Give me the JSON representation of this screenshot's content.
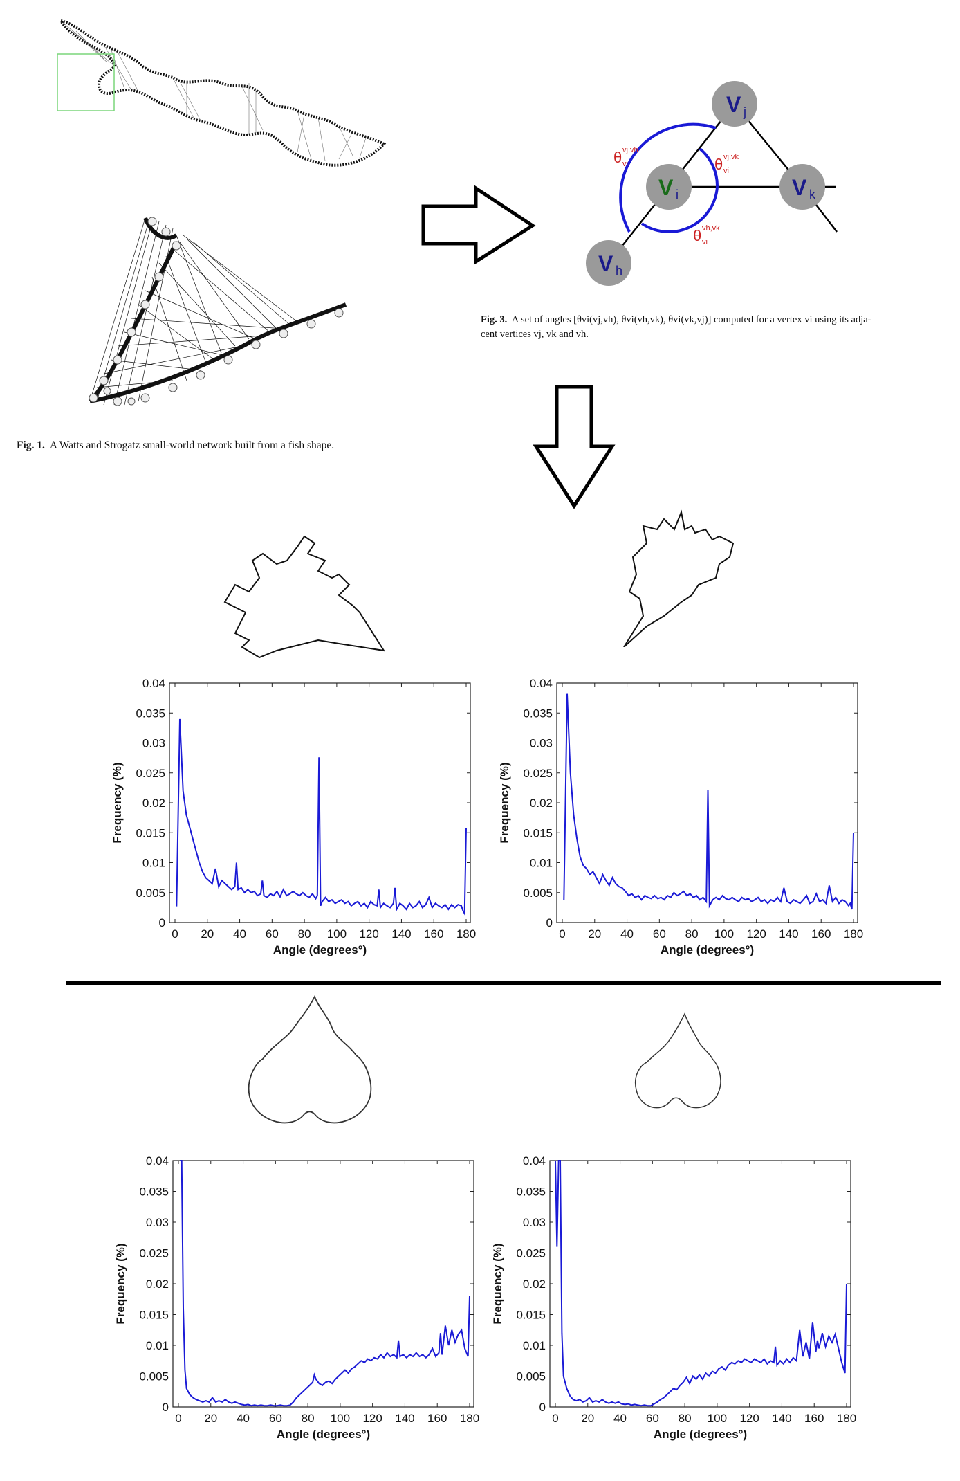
{
  "fig1": {
    "label": "Fig. 1.",
    "caption": "A Watts and Strogatz small-world network built from a fish shape."
  },
  "fig3": {
    "label": "Fig. 3.",
    "caption_a": "A set of angles [θ",
    "caption_line1": "A set of angles [θvi(vj,vh), θvi(vh,vk), θvi(vk,vj)] computed for a vertex vi using its adja-",
    "caption_line2": "cent vertices vj, vk and vh.",
    "nodes": {
      "vj": "V",
      "vj_sub": "j",
      "vi": "V",
      "vi_sub": "i",
      "vk": "V",
      "vk_sub": "k",
      "vh": "V",
      "vh_sub": "h"
    },
    "angle_labels": {
      "a1": "θ",
      "a1_sub": "vi",
      "a1_sup": "vj,vh",
      "a2": "θ",
      "a2_sub": "vi",
      "a2_sup": "vj,vk",
      "a3": "θ",
      "a3_sub": "vi",
      "a3_sup": "vh,vk"
    }
  },
  "colors": {
    "series": "#1a1ad6",
    "axis": "#222222",
    "angle_label": "#cc2222",
    "node_fill": "#9a9a9a",
    "vi_text": "#1a6b1a",
    "node_text": "#1a1a8a",
    "arc": "#1a1ad6",
    "highlight_box": "#7ad67a"
  },
  "chart_data": [
    {
      "type": "line",
      "xlabel": "Angle (degrees°)",
      "ylabel": "Frequency (%)",
      "xlim": [
        0,
        180
      ],
      "ylim": [
        0,
        0.04
      ],
      "xticks": [
        "0",
        "20",
        "40",
        "60",
        "80",
        "100",
        "120",
        "140",
        "160",
        "180"
      ],
      "yticks": [
        "0",
        "0.005",
        "0.01",
        "0.015",
        "0.02",
        "0.025",
        "0.03",
        "0.035",
        "0.04"
      ],
      "x": [
        1,
        3,
        5,
        7,
        9,
        11,
        13,
        15,
        17,
        19,
        21,
        23,
        25,
        27,
        29,
        31,
        33,
        35,
        37,
        38,
        39,
        41,
        43,
        45,
        47,
        49,
        51,
        53,
        54,
        55,
        57,
        59,
        61,
        63,
        65,
        67,
        69,
        71,
        73,
        75,
        77,
        79,
        81,
        83,
        85,
        87,
        88,
        89,
        90,
        91,
        93,
        95,
        97,
        99,
        101,
        103,
        105,
        107,
        109,
        111,
        113,
        115,
        117,
        119,
        121,
        123,
        125,
        126,
        127,
        129,
        131,
        133,
        135,
        136,
        137,
        139,
        141,
        143,
        145,
        147,
        149,
        151,
        153,
        155,
        157,
        159,
        161,
        163,
        165,
        167,
        169,
        171,
        173,
        175,
        177,
        178,
        179,
        180
      ],
      "y": [
        0.0027,
        0.034,
        0.022,
        0.018,
        0.016,
        0.014,
        0.012,
        0.01,
        0.0085,
        0.0075,
        0.007,
        0.0065,
        0.009,
        0.006,
        0.007,
        0.0065,
        0.006,
        0.0055,
        0.006,
        0.01,
        0.0055,
        0.0058,
        0.005,
        0.0055,
        0.005,
        0.0052,
        0.0045,
        0.0048,
        0.007,
        0.0045,
        0.0042,
        0.0048,
        0.0045,
        0.0052,
        0.0043,
        0.0055,
        0.0045,
        0.0048,
        0.0052,
        0.0048,
        0.0045,
        0.005,
        0.0045,
        0.0042,
        0.0048,
        0.004,
        0.0045,
        0.0276,
        0.0028,
        0.0035,
        0.0042,
        0.0035,
        0.0038,
        0.0032,
        0.0035,
        0.0038,
        0.0032,
        0.0035,
        0.0028,
        0.0032,
        0.0035,
        0.0028,
        0.0032,
        0.0025,
        0.0035,
        0.003,
        0.0028,
        0.0055,
        0.0025,
        0.0032,
        0.0028,
        0.0025,
        0.0032,
        0.0058,
        0.0022,
        0.0032,
        0.0028,
        0.0022,
        0.0032,
        0.0025,
        0.0028,
        0.0035,
        0.0025,
        0.003,
        0.0042,
        0.0025,
        0.0032,
        0.0028,
        0.0025,
        0.003,
        0.0022,
        0.003,
        0.0025,
        0.003,
        0.0028,
        0.002,
        0.0015,
        0.0158
      ]
    },
    {
      "type": "line",
      "xlabel": "Angle (degrees°)",
      "ylabel": "Frequency (%)",
      "xlim": [
        0,
        180
      ],
      "ylim": [
        0,
        0.04
      ],
      "xticks": [
        "0",
        "20",
        "40",
        "60",
        "80",
        "100",
        "120",
        "140",
        "160",
        "180"
      ],
      "yticks": [
        "0",
        "0.005",
        "0.01",
        "0.015",
        "0.02",
        "0.025",
        "0.03",
        "0.035",
        "0.04"
      ],
      "x": [
        1,
        3,
        5,
        7,
        9,
        11,
        13,
        15,
        17,
        19,
        21,
        23,
        25,
        27,
        29,
        31,
        33,
        35,
        37,
        39,
        41,
        43,
        45,
        47,
        49,
        51,
        53,
        55,
        57,
        59,
        61,
        63,
        65,
        67,
        69,
        71,
        73,
        75,
        77,
        79,
        81,
        83,
        85,
        87,
        89,
        90,
        91,
        93,
        95,
        97,
        99,
        101,
        103,
        105,
        107,
        109,
        111,
        113,
        115,
        117,
        119,
        121,
        123,
        125,
        127,
        129,
        131,
        133,
        135,
        137,
        139,
        141,
        143,
        145,
        147,
        149,
        151,
        153,
        155,
        157,
        159,
        161,
        163,
        165,
        167,
        169,
        171,
        173,
        175,
        177,
        178,
        179,
        180
      ],
      "y": [
        0.0038,
        0.0382,
        0.025,
        0.018,
        0.014,
        0.011,
        0.0095,
        0.009,
        0.008,
        0.0085,
        0.0075,
        0.0065,
        0.008,
        0.007,
        0.0062,
        0.0075,
        0.0065,
        0.006,
        0.0058,
        0.0052,
        0.0045,
        0.0048,
        0.0042,
        0.0045,
        0.0038,
        0.0045,
        0.0042,
        0.004,
        0.0045,
        0.004,
        0.0042,
        0.0038,
        0.0045,
        0.0042,
        0.005,
        0.0045,
        0.0048,
        0.0052,
        0.0045,
        0.0048,
        0.0042,
        0.0045,
        0.0038,
        0.0042,
        0.0035,
        0.0222,
        0.0028,
        0.0038,
        0.0042,
        0.0038,
        0.0045,
        0.004,
        0.0038,
        0.0042,
        0.0038,
        0.0035,
        0.0042,
        0.0038,
        0.004,
        0.0035,
        0.0038,
        0.0042,
        0.0035,
        0.0038,
        0.0032,
        0.0038,
        0.0035,
        0.0042,
        0.0035,
        0.0058,
        0.0035,
        0.0032,
        0.0038,
        0.0035,
        0.0032,
        0.0038,
        0.0045,
        0.0032,
        0.0035,
        0.0048,
        0.0035,
        0.0038,
        0.0032,
        0.0062,
        0.0035,
        0.0042,
        0.0032,
        0.0038,
        0.0035,
        0.0028,
        0.0032,
        0.0022,
        0.015
      ]
    },
    {
      "type": "line",
      "xlabel": "Angle (degrees°)",
      "ylabel": "Frequency (%)",
      "xlim": [
        0,
        180
      ],
      "ylim": [
        0,
        0.04
      ],
      "xticks": [
        "0",
        "20",
        "40",
        "60",
        "80",
        "100",
        "120",
        "140",
        "160",
        "180"
      ],
      "yticks": [
        "0",
        "0.005",
        "0.01",
        "0.015",
        "0.02",
        "0.025",
        "0.03",
        "0.035",
        "0.04"
      ],
      "x": [
        1,
        2,
        3,
        4,
        5,
        7,
        9,
        11,
        13,
        15,
        17,
        19,
        21,
        23,
        25,
        27,
        29,
        31,
        33,
        35,
        37,
        39,
        41,
        43,
        45,
        47,
        49,
        51,
        53,
        55,
        57,
        59,
        61,
        63,
        65,
        67,
        69,
        71,
        73,
        75,
        77,
        79,
        81,
        83,
        84,
        85,
        87,
        89,
        91,
        93,
        95,
        97,
        99,
        101,
        103,
        105,
        107,
        109,
        111,
        113,
        115,
        117,
        119,
        121,
        123,
        125,
        127,
        129,
        131,
        133,
        135,
        136,
        137,
        139,
        141,
        143,
        145,
        147,
        149,
        151,
        153,
        155,
        157,
        159,
        161,
        162,
        163,
        165,
        167,
        169,
        171,
        173,
        175,
        177,
        179,
        180
      ],
      "y": [
        0.04,
        0.04,
        0.016,
        0.006,
        0.003,
        0.002,
        0.0015,
        0.0012,
        0.001,
        0.0008,
        0.001,
        0.0008,
        0.0015,
        0.0008,
        0.001,
        0.0008,
        0.0012,
        0.0008,
        0.0006,
        0.0008,
        0.0006,
        0.0004,
        0.0003,
        0.0004,
        0.0002,
        0.0003,
        0.0002,
        0.0003,
        0.0002,
        0.0002,
        0.0003,
        0.0002,
        0.0002,
        0.0003,
        0.0002,
        0.0002,
        0.0003,
        0.0008,
        0.0015,
        0.002,
        0.0025,
        0.003,
        0.0035,
        0.004,
        0.0052,
        0.0045,
        0.0038,
        0.0035,
        0.004,
        0.0042,
        0.0038,
        0.0045,
        0.005,
        0.0055,
        0.006,
        0.0055,
        0.0062,
        0.0065,
        0.007,
        0.0075,
        0.0072,
        0.0078,
        0.0075,
        0.008,
        0.0078,
        0.0085,
        0.008,
        0.0088,
        0.0082,
        0.0085,
        0.008,
        0.0108,
        0.0082,
        0.0085,
        0.008,
        0.0085,
        0.0082,
        0.0088,
        0.0082,
        0.0085,
        0.008,
        0.0085,
        0.0095,
        0.0082,
        0.0088,
        0.012,
        0.0085,
        0.0132,
        0.01,
        0.0125,
        0.0105,
        0.0118,
        0.0125,
        0.0095,
        0.0082,
        0.018
      ]
    },
    {
      "type": "line",
      "xlabel": "Angle (degrees°)",
      "ylabel": "Frequency (%)",
      "xlim": [
        0,
        180
      ],
      "ylim": [
        0,
        0.04
      ],
      "xticks": [
        "0",
        "20",
        "40",
        "60",
        "80",
        "100",
        "120",
        "140",
        "160",
        "180"
      ],
      "yticks": [
        "0",
        "0.005",
        "0.01",
        "0.015",
        "0.02",
        "0.025",
        "0.03",
        "0.035",
        "0.04"
      ],
      "x": [
        0,
        1,
        2,
        3,
        4,
        5,
        7,
        9,
        11,
        13,
        15,
        17,
        19,
        21,
        23,
        25,
        27,
        29,
        31,
        33,
        35,
        37,
        39,
        41,
        43,
        45,
        47,
        49,
        51,
        53,
        55,
        57,
        59,
        61,
        63,
        65,
        67,
        69,
        71,
        73,
        75,
        77,
        79,
        81,
        83,
        85,
        87,
        89,
        91,
        93,
        95,
        97,
        99,
        101,
        103,
        105,
        107,
        109,
        111,
        113,
        115,
        117,
        119,
        121,
        123,
        125,
        127,
        129,
        131,
        133,
        135,
        136,
        137,
        139,
        141,
        143,
        145,
        147,
        149,
        151,
        153,
        155,
        157,
        159,
        161,
        162,
        163,
        165,
        167,
        169,
        171,
        173,
        175,
        177,
        179,
        180
      ],
      "y": [
        0.04,
        0.026,
        0.04,
        0.04,
        0.012,
        0.005,
        0.003,
        0.0018,
        0.0012,
        0.001,
        0.0012,
        0.0008,
        0.001,
        0.0015,
        0.0008,
        0.001,
        0.0008,
        0.0012,
        0.0008,
        0.0006,
        0.0008,
        0.0006,
        0.0008,
        0.0005,
        0.0004,
        0.0005,
        0.0003,
        0.0004,
        0.0003,
        0.0002,
        0.0003,
        0.0002,
        0.0002,
        0.0005,
        0.0008,
        0.0012,
        0.0015,
        0.002,
        0.0025,
        0.003,
        0.0028,
        0.0035,
        0.004,
        0.0048,
        0.0038,
        0.005,
        0.0045,
        0.0052,
        0.0045,
        0.0055,
        0.005,
        0.0058,
        0.0055,
        0.0062,
        0.0065,
        0.006,
        0.0068,
        0.0072,
        0.007,
        0.0075,
        0.0072,
        0.0078,
        0.0075,
        0.0072,
        0.0078,
        0.0075,
        0.0072,
        0.0078,
        0.007,
        0.0075,
        0.0072,
        0.0098,
        0.0068,
        0.0075,
        0.007,
        0.0078,
        0.0072,
        0.008,
        0.0075,
        0.0125,
        0.0082,
        0.0105,
        0.0078,
        0.0138,
        0.009,
        0.0108,
        0.0095,
        0.012,
        0.0098,
        0.0115,
        0.0105,
        0.0118,
        0.0095,
        0.0072,
        0.0055,
        0.02
      ]
    }
  ]
}
